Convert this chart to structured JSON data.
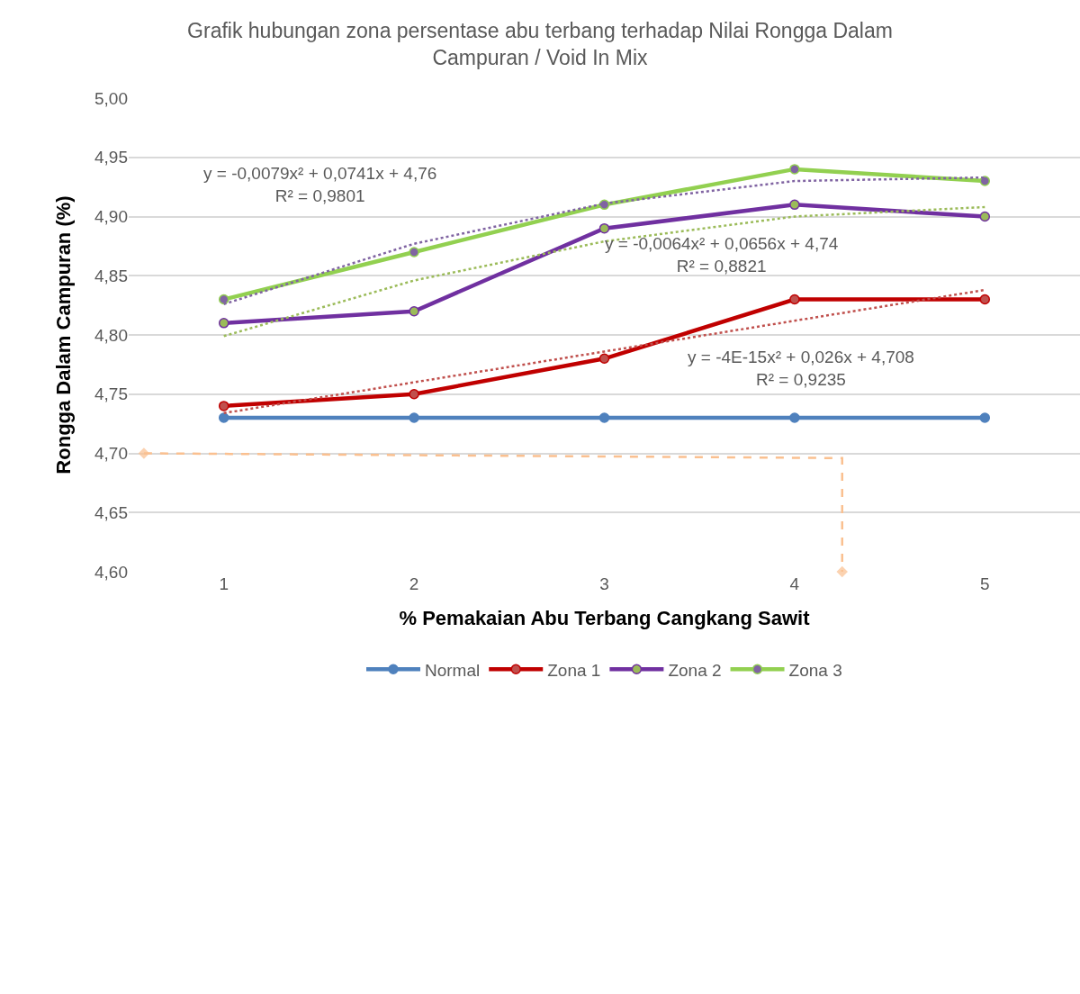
{
  "chart_data": {
    "type": "line",
    "title": "Grafik hubungan zona persentase abu terbang terhadap Nilai Rongga Dalam\nCampuran / Void In Mix",
    "xlabel": "% Pemakaian Abu Terbang Cangkang Sawit",
    "ylabel": "Rongga Dalam Campuran (%)",
    "x": [
      1,
      2,
      3,
      4,
      5
    ],
    "xlim": [
      0.5,
      5.5
    ],
    "xticks": [
      1,
      2,
      3,
      4,
      5
    ],
    "ylim": [
      4.6,
      5.0
    ],
    "yticks": [
      {
        "value": 4.6,
        "label": "4,60"
      },
      {
        "value": 4.65,
        "label": "4,65"
      },
      {
        "value": 4.7,
        "label": "4,70"
      },
      {
        "value": 4.75,
        "label": "4,75"
      },
      {
        "value": 4.8,
        "label": "4,80"
      },
      {
        "value": 4.85,
        "label": "4,85"
      },
      {
        "value": 4.9,
        "label": "4,90"
      },
      {
        "value": 4.95,
        "label": "4,95"
      },
      {
        "value": 5.0,
        "label": "5,00"
      }
    ],
    "grid": "y",
    "legend": "bottom",
    "marker": "circle",
    "line_style": "solid",
    "series": [
      {
        "name": "Normal",
        "color": "#4f81bd",
        "colors": [
          "#4f81bd",
          "#4f81bd",
          "#4f81bd",
          "#4f81bd",
          "#4f81bd"
        ],
        "values": [
          4.73,
          4.73,
          4.73,
          4.73,
          4.73
        ]
      },
      {
        "name": "Zona 1",
        "color": "#c00000",
        "colors": [
          "#c0504d",
          "#c0504d",
          "#c0504d",
          "#c0504d",
          "#c0504d"
        ],
        "values": [
          4.74,
          4.75,
          4.78,
          4.83,
          4.83
        ]
      },
      {
        "name": "Zona 2",
        "color": "#7030a0",
        "colors": [
          "#9bbb59",
          "#9bbb59",
          "#9bbb59",
          "#9bbb59",
          "#9bbb59"
        ],
        "values": [
          4.81,
          4.82,
          4.89,
          4.91,
          4.9
        ]
      },
      {
        "name": "Zona 3",
        "color": "#92d050",
        "colors": [
          "#8064a2",
          "#8064a2",
          "#8064a2",
          "#8064a2",
          "#8064a2"
        ],
        "values": [
          4.83,
          4.87,
          4.91,
          4.94,
          4.93
        ]
      },
      {
        "type": "line",
        "color": "#8064a2",
        "line_style": "dotted",
        "marker": "none",
        "x": [
          1,
          2,
          3,
          4,
          5
        ],
        "values": [
          4.826,
          4.877,
          4.911,
          4.93,
          4.933
        ]
      },
      {
        "type": "line",
        "color": "#9bbb59",
        "line_style": "dotted",
        "marker": "none",
        "x": [
          1,
          2,
          3,
          4,
          5
        ],
        "values": [
          4.799,
          4.846,
          4.879,
          4.9,
          4.908
        ]
      },
      {
        "type": "line",
        "color": "#c0504d",
        "line_style": "dotted",
        "marker": "none",
        "x": [
          1,
          2,
          3,
          4,
          5
        ],
        "values": [
          4.734,
          4.76,
          4.786,
          4.812,
          4.838
        ]
      },
      {
        "type": "line",
        "color": "#fac090",
        "line_style": "dashed",
        "marker": "diamond",
        "x": [
          0.58,
          4.25,
          4.25
        ],
        "values": [
          4.7,
          4.696,
          4.6
        ]
      }
    ],
    "annotations": [
      "y = -0,0079x² + 0,0741x + 4,76\nR² = 0,9801",
      "y = -0,0064x² + 0,0656x + 4,74\nR² = 0,8821",
      "y = -4E-15x² + 0,026x + 4,708\nR² = 0,9235"
    ]
  }
}
